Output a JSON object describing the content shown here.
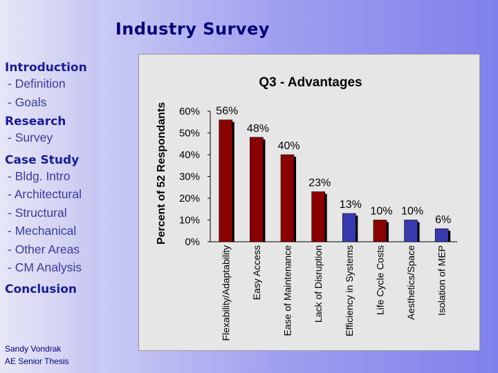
{
  "slide": {
    "title": "Industry Survey"
  },
  "nav": [
    {
      "section": "Introduction",
      "items": [
        "- Definition",
        "- Goals"
      ]
    },
    {
      "section": "Research",
      "items": [
        "- Survey"
      ]
    },
    {
      "section": "Case Study",
      "items": [
        "- Bldg. Intro",
        "- Architectural",
        "- Structural",
        "- Mechanical",
        "- Other Areas",
        "- CM Analysis"
      ]
    },
    {
      "section": "Conclusion",
      "items": []
    }
  ],
  "footer": {
    "author": "Sandy Vondrak",
    "subtitle": "AE Senior Thesis"
  },
  "colors": {
    "red_bar": "#8b0000",
    "blue_bar": "#3a3ab0",
    "title": "#00007a",
    "nav": "#1a1a9e"
  },
  "chart_data": {
    "type": "bar",
    "title": "Q3 - Advantages",
    "xlabel": "",
    "ylabel": "Percent of 52 Respondants",
    "ylim": [
      0,
      0.6
    ],
    "yticks": [
      "0%",
      "10%",
      "20%",
      "30%",
      "40%",
      "50%",
      "60%"
    ],
    "categories": [
      "Flexability/Adaptability",
      "Easy Access",
      "Ease of Maintenance",
      "Lack of Disruption",
      "Efficiency in Systems",
      "Life Cycle Costs",
      "Aesthetics/Space",
      "Isolation of MEP"
    ],
    "values": [
      0.56,
      0.48,
      0.4,
      0.23,
      0.13,
      0.1,
      0.1,
      0.06
    ],
    "data_labels": [
      "56%",
      "48%",
      "40%",
      "23%",
      "13%",
      "10%",
      "10%",
      "6%"
    ],
    "bar_colors": [
      "#8b0000",
      "#8b0000",
      "#8b0000",
      "#8b0000",
      "#3a3ab0",
      "#8b0000",
      "#3a3ab0",
      "#3a3ab0"
    ],
    "grid": false,
    "legend": "none"
  }
}
